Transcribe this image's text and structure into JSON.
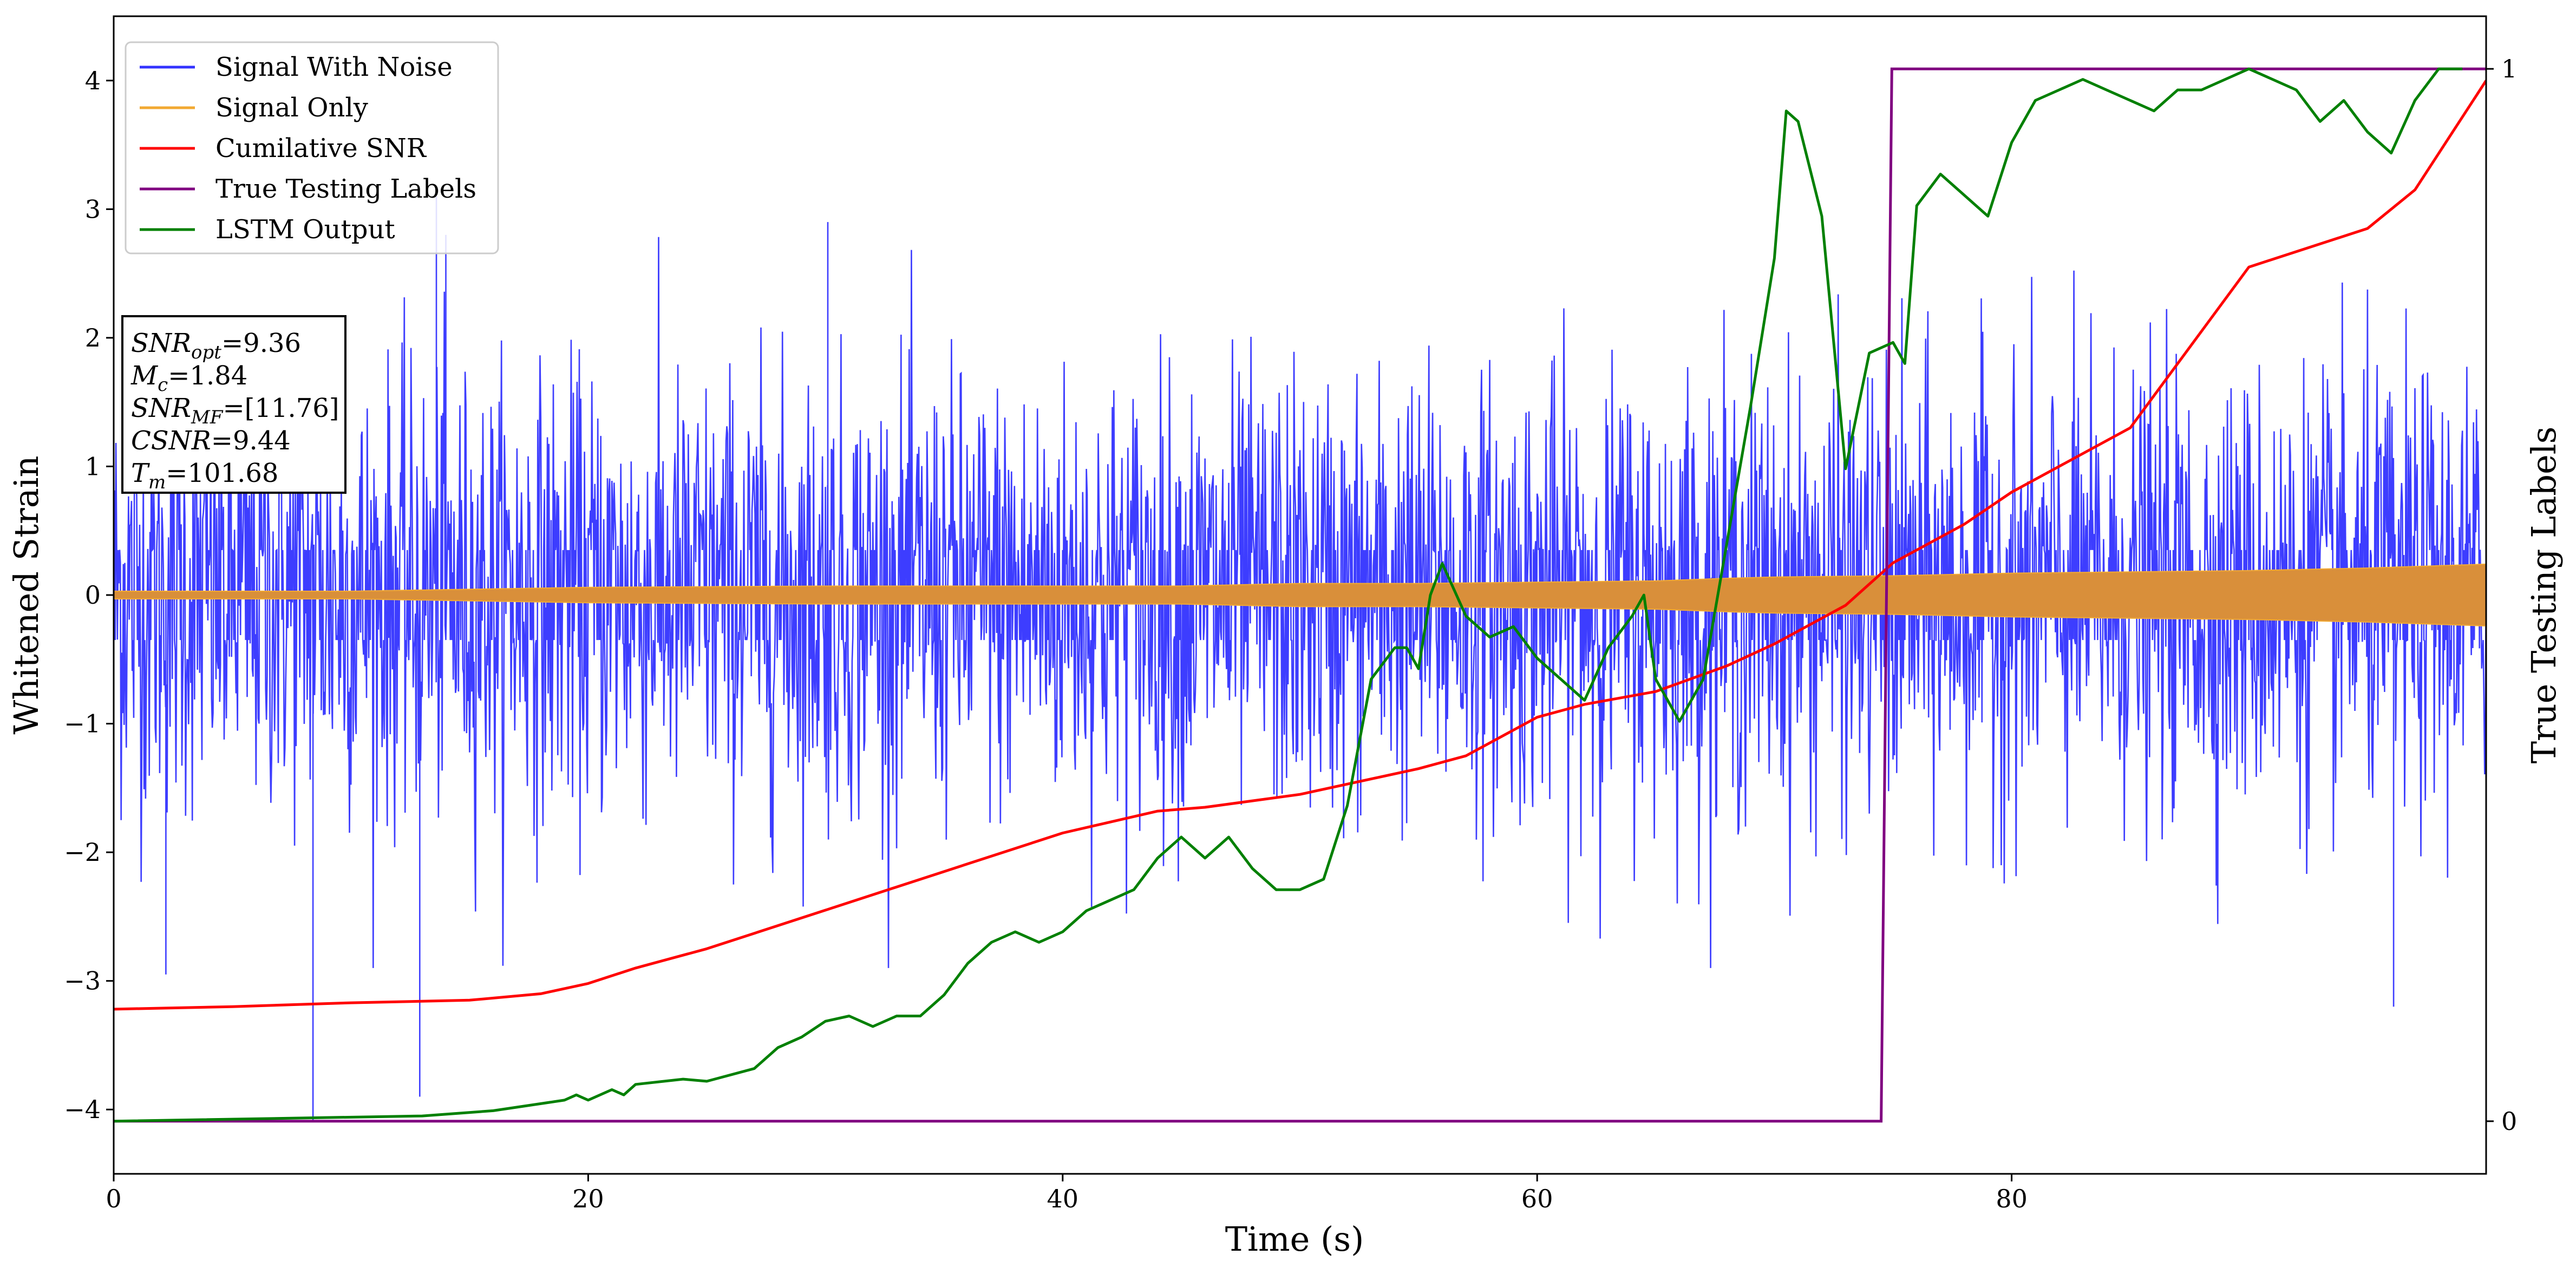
{
  "chart_data": {
    "type": "line",
    "xlabel": "Time (s)",
    "ylabel": "Whitened Strain",
    "ylabel_right": "True Testing Labels",
    "xlim": [
      0,
      100
    ],
    "ylim": [
      -4.5,
      4.5
    ],
    "ylim_right": [
      -0.05,
      1.05
    ],
    "x_ticks": [
      0,
      20,
      40,
      60,
      80
    ],
    "y_ticks": [
      -4,
      -3,
      -2,
      -1,
      0,
      1,
      2,
      3,
      4
    ],
    "y_ticks_right": [
      0,
      1
    ],
    "grid": false,
    "legend_position": "upper-left",
    "colors": {
      "signal_with_noise": "#3333ff",
      "signal_only": "#f2a932",
      "signal_only_fill": "#d98f3a",
      "cumulative_snr": "#ff0000",
      "true_labels": "#800080",
      "lstm_output": "#008000"
    },
    "series": [
      {
        "name": "Signal With Noise",
        "axis": "left",
        "noise_envelope": {
          "typical_amplitude": 1.5,
          "max_peak": 3.1,
          "min_peak": -4.1
        }
      },
      {
        "name": "Signal Only",
        "axis": "left",
        "envelope": {
          "x": [
            0,
            10,
            20,
            30,
            40,
            45,
            50,
            55,
            60,
            65,
            68,
            70,
            75,
            80,
            85,
            90,
            95,
            100
          ],
          "amplitude": [
            0.03,
            0.03,
            0.06,
            0.07,
            0.07,
            0.07,
            0.09,
            0.09,
            0.1,
            0.11,
            0.13,
            0.14,
            0.15,
            0.17,
            0.18,
            0.19,
            0.21,
            0.24
          ]
        }
      },
      {
        "name": "Cumilative SNR",
        "axis": "left",
        "x": [
          0,
          5,
          10,
          15,
          18,
          20,
          22,
          25,
          30,
          35,
          40,
          44,
          46,
          50,
          55,
          57,
          60,
          62,
          65,
          68,
          70,
          73,
          75,
          78,
          80,
          85,
          90,
          95,
          97,
          100
        ],
        "y": [
          -3.22,
          -3.2,
          -3.17,
          -3.15,
          -3.1,
          -3.02,
          -2.9,
          -2.75,
          -2.45,
          -2.15,
          -1.85,
          -1.68,
          -1.65,
          -1.55,
          -1.35,
          -1.25,
          -0.95,
          -0.85,
          -0.75,
          -0.55,
          -0.38,
          -0.08,
          0.25,
          0.55,
          0.8,
          1.3,
          2.55,
          2.85,
          3.15,
          4.0
        ]
      },
      {
        "name": "True Testing Labels",
        "axis": "right",
        "x": [
          0,
          74.5,
          74.95,
          75,
          100
        ],
        "y": [
          0,
          0,
          1,
          1,
          1
        ]
      },
      {
        "name": "LSTM Output",
        "axis": "right",
        "x": [
          0,
          13,
          16,
          19,
          19.5,
          20,
          21,
          21.5,
          22,
          24,
          25,
          27,
          28,
          29,
          30,
          31,
          32,
          33,
          34,
          35,
          36,
          37,
          38,
          39,
          40,
          41,
          42,
          43,
          44,
          45,
          46,
          47,
          48,
          49,
          50,
          51,
          52,
          53,
          54,
          54.5,
          55,
          55.5,
          56,
          57,
          58,
          59,
          60,
          61,
          62,
          63,
          64,
          64.5,
          65,
          66,
          67,
          68,
          69,
          69.5,
          70,
          70.5,
          71,
          72,
          73,
          74,
          75,
          75.5,
          76,
          77,
          78,
          79,
          80,
          81,
          82,
          83,
          84,
          85,
          86,
          87,
          88,
          89,
          90,
          91,
          92,
          93,
          94,
          95,
          96,
          97,
          98,
          99
        ],
        "y": [
          0,
          0.005,
          0.01,
          0.02,
          0.025,
          0.02,
          0.03,
          0.025,
          0.035,
          0.04,
          0.038,
          0.05,
          0.07,
          0.08,
          0.095,
          0.1,
          0.09,
          0.1,
          0.1,
          0.12,
          0.15,
          0.17,
          0.18,
          0.17,
          0.18,
          0.2,
          0.21,
          0.22,
          0.25,
          0.27,
          0.25,
          0.27,
          0.24,
          0.22,
          0.22,
          0.23,
          0.3,
          0.42,
          0.45,
          0.45,
          0.43,
          0.5,
          0.53,
          0.48,
          0.46,
          0.47,
          0.44,
          0.42,
          0.4,
          0.45,
          0.48,
          0.5,
          0.42,
          0.38,
          0.42,
          0.55,
          0.68,
          0.75,
          0.82,
          0.96,
          0.95,
          0.86,
          0.62,
          0.73,
          0.74,
          0.72,
          0.87,
          0.9,
          0.88,
          0.86,
          0.93,
          0.97,
          0.98,
          0.99,
          0.98,
          0.97,
          0.96,
          0.98,
          0.98,
          0.99,
          1.0,
          0.99,
          0.98,
          0.95,
          0.97,
          0.94,
          0.92,
          0.97,
          1.0,
          1.0
        ]
      }
    ],
    "annotation": [
      {
        "label": "SNR",
        "sub": "opt",
        "value": "=9.36"
      },
      {
        "label": "M",
        "sub": "c",
        "value": "=1.84"
      },
      {
        "label": "SNR",
        "sub": "MF",
        "value": "=[11.76]"
      },
      {
        "label": "CSNR",
        "sub": "",
        "value": "=9.44"
      },
      {
        "label": "T",
        "sub": "m",
        "value": "=101.68"
      }
    ]
  }
}
